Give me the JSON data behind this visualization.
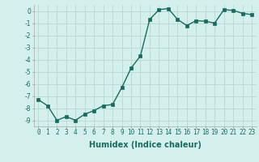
{
  "x": [
    0,
    1,
    2,
    3,
    4,
    5,
    6,
    7,
    8,
    9,
    10,
    11,
    12,
    13,
    14,
    15,
    16,
    17,
    18,
    19,
    20,
    21,
    22,
    23
  ],
  "y": [
    -7.3,
    -7.8,
    -9.0,
    -8.7,
    -9.0,
    -8.5,
    -8.2,
    -7.8,
    -7.7,
    -6.3,
    -4.7,
    -3.7,
    -0.7,
    0.1,
    0.2,
    -0.7,
    -1.2,
    -0.8,
    -0.85,
    -1.0,
    0.1,
    0.05,
    -0.2,
    -0.3
  ],
  "line_color": "#1a6b5e",
  "marker": "s",
  "marker_size": 2.2,
  "bg_color": "#d4f0ec",
  "grid_color": "#b8d8d4",
  "xlabel": "Humidex (Indice chaleur)",
  "xlabel_fontsize": 7,
  "xlim": [
    -0.5,
    23.5
  ],
  "ylim": [
    -9.5,
    0.5
  ],
  "yticks": [
    0,
    -1,
    -2,
    -3,
    -4,
    -5,
    -6,
    -7,
    -8,
    -9
  ],
  "xticks": [
    0,
    1,
    2,
    3,
    4,
    5,
    6,
    7,
    8,
    9,
    10,
    11,
    12,
    13,
    14,
    15,
    16,
    17,
    18,
    19,
    20,
    21,
    22,
    23
  ],
  "tick_fontsize": 5.5,
  "line_width": 1.0
}
